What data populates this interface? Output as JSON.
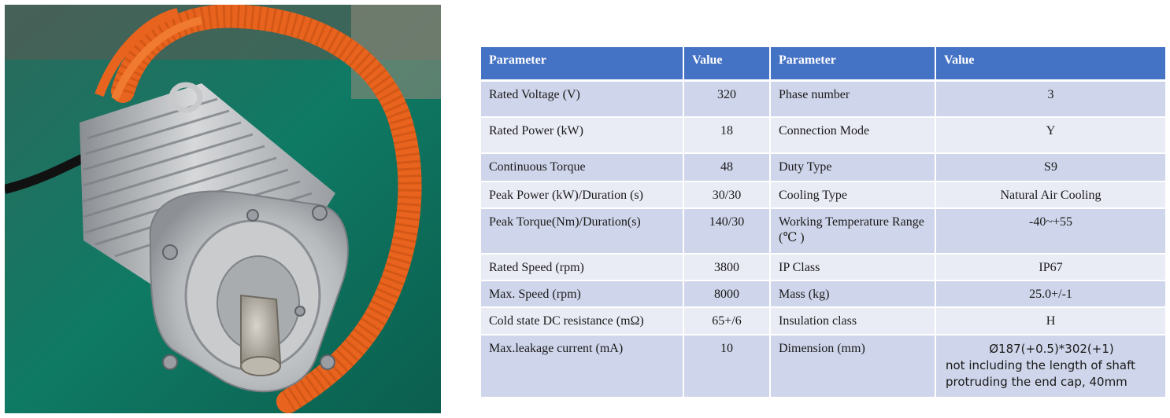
{
  "table": {
    "headers": [
      "Parameter",
      "Value",
      "Parameter",
      "Value"
    ],
    "rows": [
      {
        "p1": "Rated Voltage (V)",
        "v1": "320",
        "p2": "Phase number",
        "v2": "3"
      },
      {
        "p1": "Rated Power (kW)",
        "v1": "18",
        "p2": "Connection Mode",
        "v2": "Y"
      },
      {
        "p1": "Continuous Torque",
        "v1": "48",
        "p2": "Duty Type",
        "v2": "S9"
      },
      {
        "p1": "Peak Power (kW)/Duration (s)",
        "v1": "30/30",
        "p2": "Cooling Type",
        "v2": "Natural Air Cooling"
      },
      {
        "p1": "Peak Torque(Nm)/Duration(s)",
        "v1": "140/30",
        "p2": "Working Temperature Range (℃ )",
        "v2": "-40~+55"
      },
      {
        "p1": "Rated Speed (rpm)",
        "v1": "3800",
        "p2": "IP Class",
        "v2": "IP67"
      },
      {
        "p1": "Max. Speed (rpm)",
        "v1": "8000",
        "p2": "Mass (kg)",
        "v2": "25.0+/-1"
      },
      {
        "p1": "Cold state DC resistance (mΩ)",
        "v1": "65+/6",
        "p2": "Insulation class",
        "v2": "H"
      },
      {
        "p1": "Max.leakage current (mA)",
        "v1": "10",
        "p2": "Dimension (mm)",
        "v2": "Ø187(+0.5)*302(+1)",
        "v2_note": "not including the length of shaft protruding the end cap, 40mm"
      }
    ]
  },
  "photo": {
    "background_color": "#0f7a64",
    "motor_color": "#b9bcbf",
    "cable_color": "#e8641e"
  }
}
